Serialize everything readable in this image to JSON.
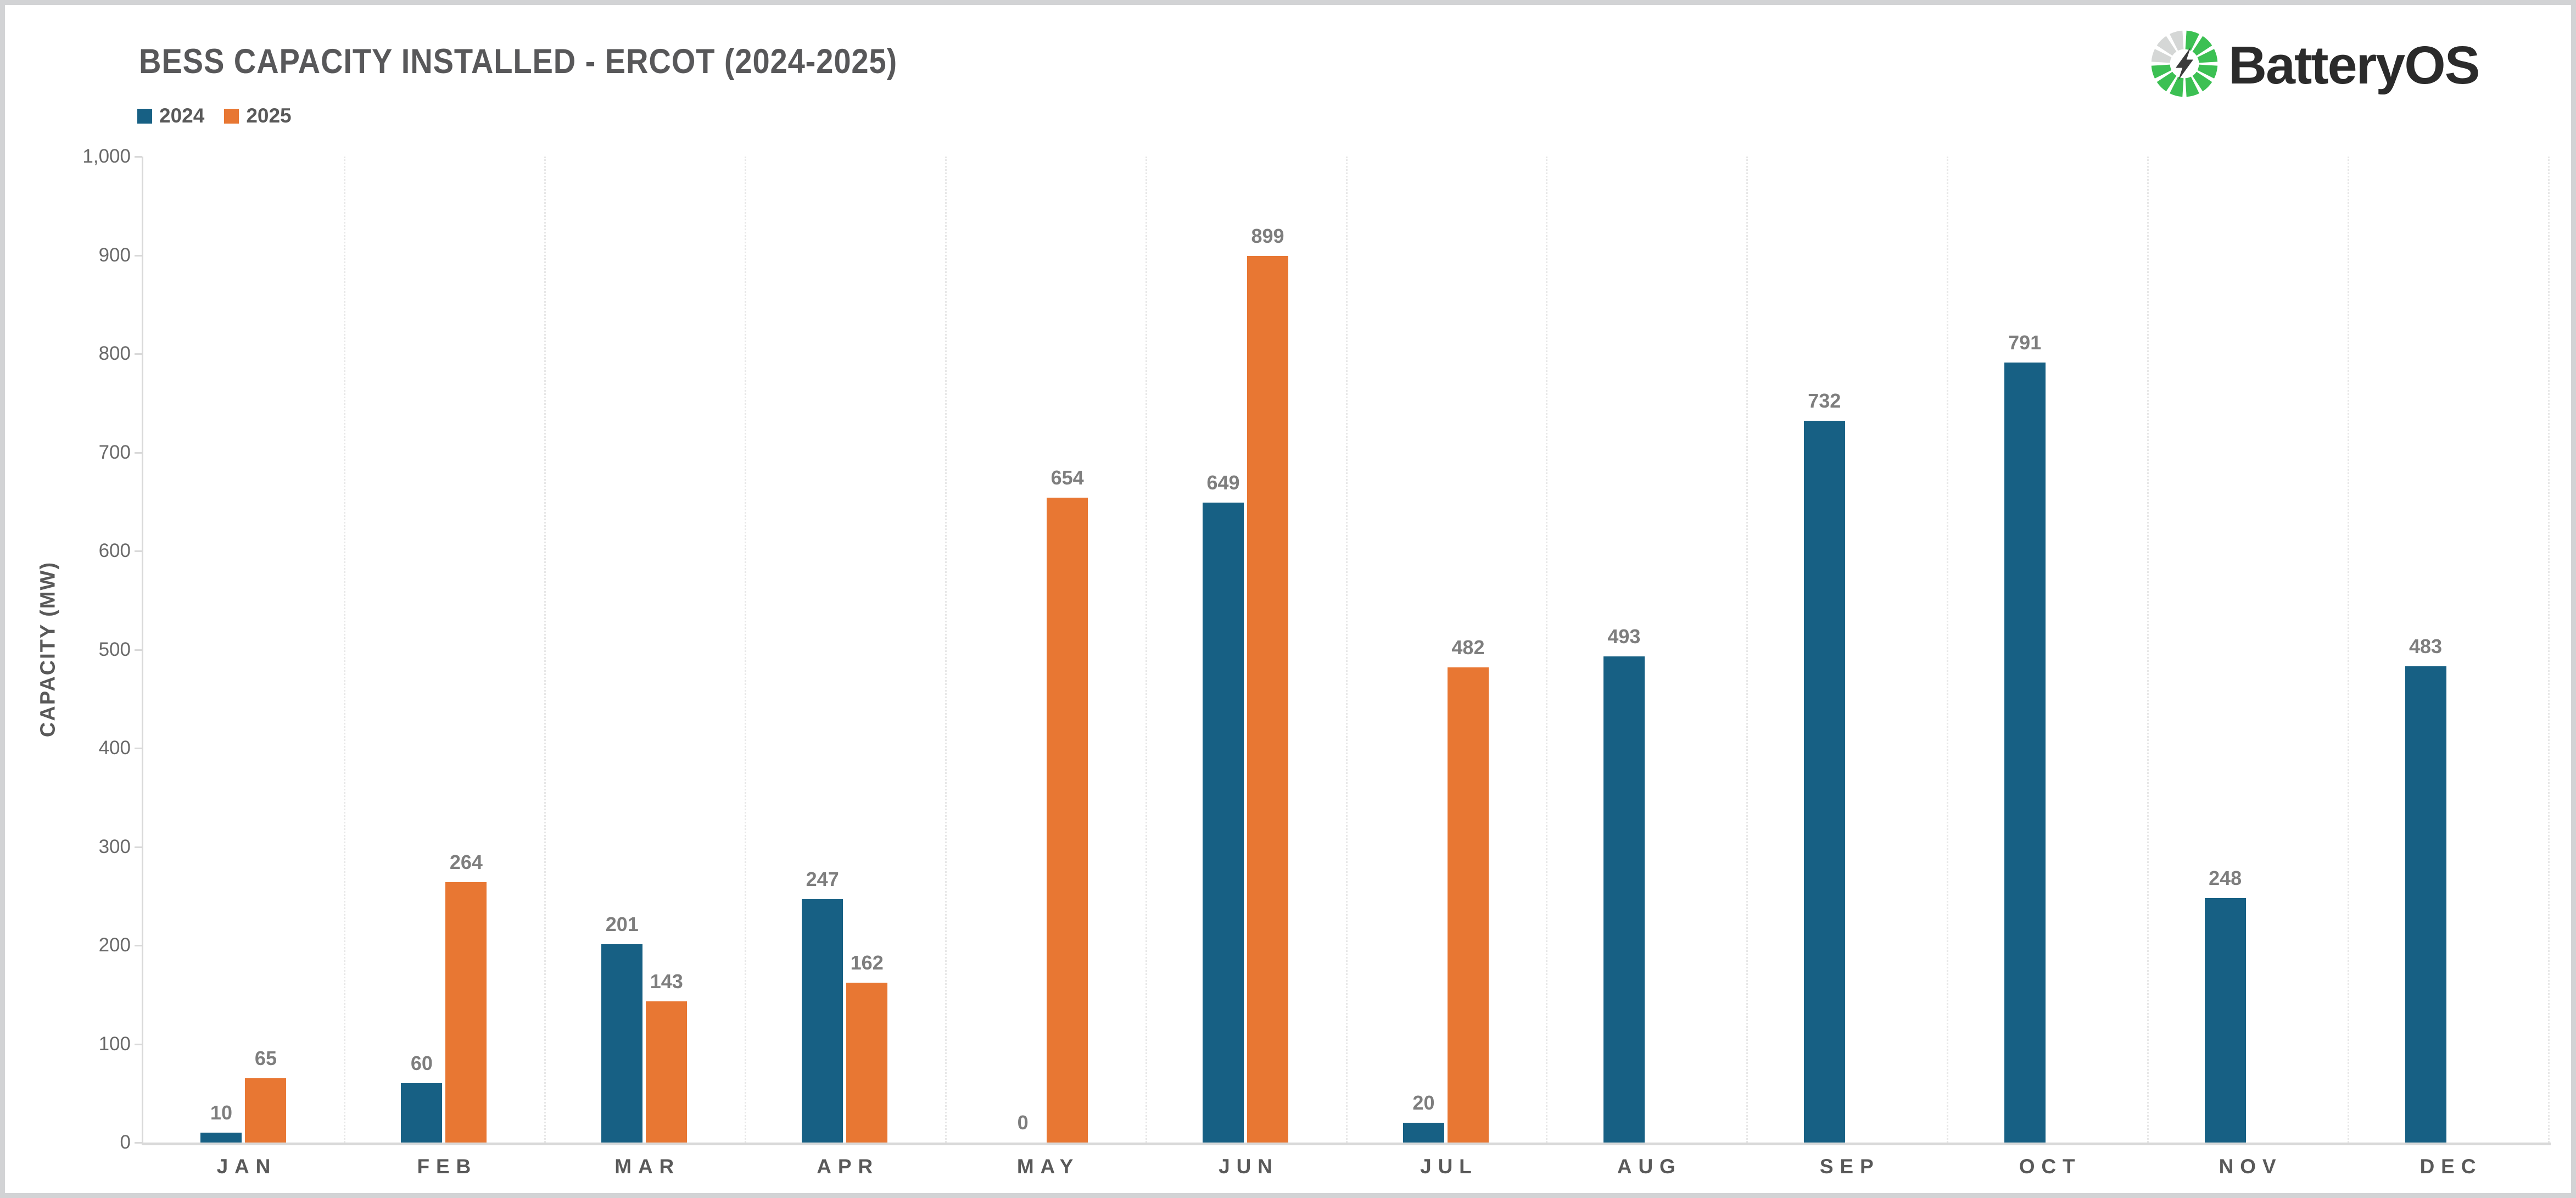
{
  "header": {
    "logo": {
      "text": "BatteryOS",
      "icon": "charging-wheel-lightning-icon",
      "icon_colors": {
        "active": "#3cc053",
        "inactive": "#d5d7d6",
        "bolt": "#3a3a3a"
      }
    }
  },
  "chart_data": {
    "type": "bar",
    "title": "BESS CAPACITY INSTALLED - ERCOT (2024-2025)",
    "xlabel": "",
    "ylabel": "CAPACITY (MW)",
    "ylim": [
      0,
      1000
    ],
    "ytick_interval": 100,
    "ytick_labels": [
      "0",
      "100",
      "200",
      "300",
      "400",
      "500",
      "600",
      "700",
      "800",
      "900",
      "1,000"
    ],
    "grid": "vertical dotted separators between month bands, no horizontal gridlines",
    "legend_position": "top-left",
    "data_labels": "value shown above each bar",
    "categories": [
      "JAN",
      "FEB",
      "MAR",
      "APR",
      "MAY",
      "JUN",
      "JUL",
      "AUG",
      "SEP",
      "OCT",
      "NOV",
      "DEC"
    ],
    "series": [
      {
        "name": "2024",
        "color": "#176084",
        "values": [
          10,
          60,
          201,
          247,
          0,
          649,
          20,
          493,
          732,
          791,
          248,
          483
        ]
      },
      {
        "name": "2025",
        "color": "#e87733",
        "values": [
          65,
          264,
          143,
          162,
          654,
          899,
          482,
          null,
          null,
          null,
          null,
          null
        ]
      }
    ],
    "colors": {
      "axis": "#d9d9d9",
      "separator": "#e7e7e7",
      "title_text": "#58585a",
      "tick_text": "#696969",
      "month_text": "#595959",
      "value_label_text": "#7e7e7e"
    }
  }
}
